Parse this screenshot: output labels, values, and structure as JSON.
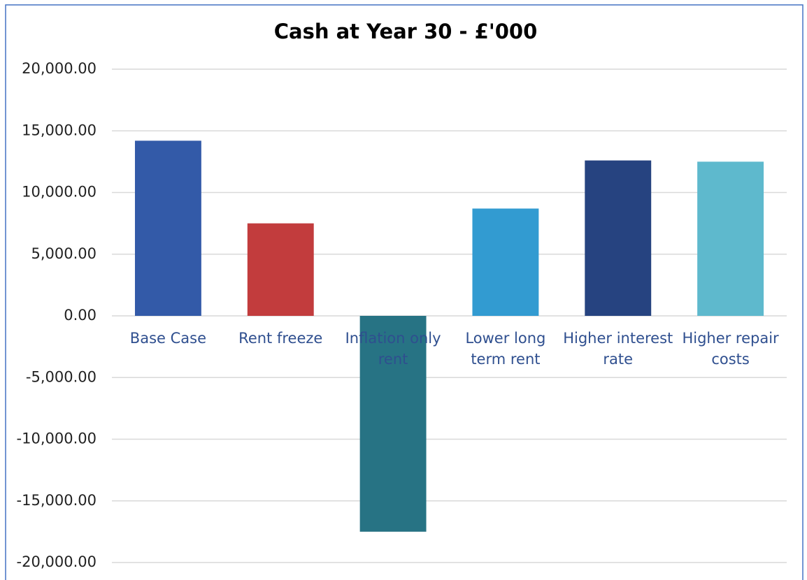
{
  "chart_data": {
    "type": "bar",
    "title": "Cash at Year 30 - £'000",
    "categories": [
      "Base Case",
      "Rent freeze",
      "Inflation only rent",
      "Lower long term rent",
      "Higher interest rate",
      "Higher repair costs"
    ],
    "values": [
      14200,
      7500,
      -17500,
      8700,
      12600,
      12500
    ],
    "colors": [
      "#335aa8",
      "#c23c3d",
      "#277384",
      "#329bd1",
      "#264380",
      "#5eb9cd"
    ],
    "ylim": [
      -20000,
      20000
    ],
    "yticks": [
      {
        "value": -20000,
        "label": "-20,000.00"
      },
      {
        "value": -15000,
        "label": "-15,000.00"
      },
      {
        "value": -10000,
        "label": "-10,000.00"
      },
      {
        "value": -5000,
        "label": "-5,000.00"
      },
      {
        "value": 0,
        "label": "0.00"
      },
      {
        "value": 5000,
        "label": "5,000.00"
      },
      {
        "value": 10000,
        "label": "10,000.00"
      },
      {
        "value": 15000,
        "label": "15,000.00"
      },
      {
        "value": 20000,
        "label": "20,000.00"
      }
    ],
    "grid": true
  }
}
